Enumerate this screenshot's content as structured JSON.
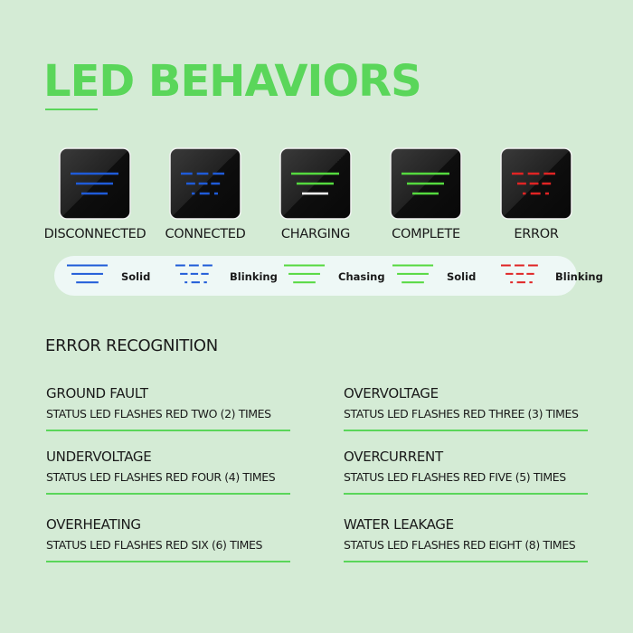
{
  "title": "LED BEHAVIORS",
  "colors": {
    "blue": "#1f5bd8",
    "green": "#55d93f",
    "red": "#e02424",
    "white": "#ffffff",
    "accent": "#5ad65a",
    "background": "#d4ebd5"
  },
  "tiles": [
    {
      "label": "DISCONNECTED",
      "color": "blue",
      "pattern": "solid"
    },
    {
      "label": "CONNECTED",
      "color": "blue",
      "pattern": "blinking"
    },
    {
      "label": "CHARGING",
      "color": "green",
      "pattern": "chasing"
    },
    {
      "label": "COMPLETE",
      "color": "green",
      "pattern": "solid"
    },
    {
      "label": "ERROR",
      "color": "red",
      "pattern": "blinking"
    }
  ],
  "legend": [
    {
      "label": "Solid",
      "color": "blue",
      "pattern": "solid"
    },
    {
      "label": "Blinking",
      "color": "blue",
      "pattern": "blinking"
    },
    {
      "label": "Chasing",
      "color": "green",
      "pattern": "chasing"
    },
    {
      "label": "Solid",
      "color": "green",
      "pattern": "solid"
    },
    {
      "label": "Blinking",
      "color": "red",
      "pattern": "blinking"
    }
  ],
  "error_section": {
    "heading": "ERROR RECOGNITION",
    "items": [
      {
        "title": "GROUND FAULT",
        "desc": "STATUS LED FLASHES RED TWO (2) TIMES"
      },
      {
        "title": "OVERVOLTAGE",
        "desc": "STATUS LED FLASHES RED THREE (3) TIMES"
      },
      {
        "title": "UNDERVOLTAGE",
        "desc": "STATUS LED FLASHES RED FOUR (4) TIMES"
      },
      {
        "title": "OVERCURRENT",
        "desc": "STATUS LED FLASHES RED FIVE (5) TIMES"
      },
      {
        "title": "OVERHEATING",
        "desc": "STATUS LED FLASHES RED SIX (6) TIMES"
      },
      {
        "title": "WATER LEAKAGE",
        "desc": "STATUS LED FLASHES RED EIGHT (8) TIMES"
      }
    ]
  }
}
